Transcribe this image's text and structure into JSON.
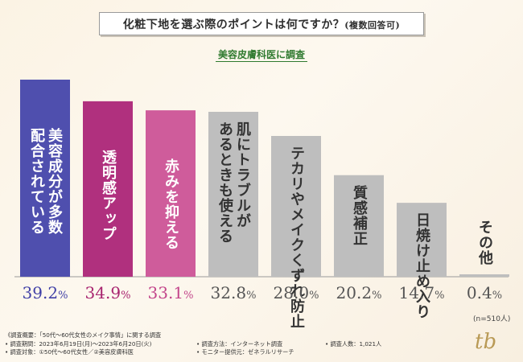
{
  "title": {
    "main": "化粧下地を選ぶ際のポイントは何ですか？",
    "sub": "(複数回答可)"
  },
  "subtitle": "美容皮膚科医に調査",
  "chart_data": {
    "type": "bar",
    "title": "化粧下地を選ぶ際のポイントは何ですか？(複数回答可)",
    "categories": [
      "美容成分が多数配合されている",
      "透明感アップ",
      "赤みを抑える",
      "肌にトラブルがあるときも使える",
      "テカリやメイクくずれ防止",
      "質感補正",
      "日焼け止め入り",
      "その他"
    ],
    "display_labels": [
      "美容成分が多数\n配合されている",
      "透明感アップ",
      "赤みを抑える",
      "肌にトラブルが\nあるときも使える",
      "テカリやメイクくずれ防止",
      "質感補正",
      "日焼け止め入り",
      "その他"
    ],
    "values": [
      39.2,
      34.9,
      33.1,
      32.8,
      28.0,
      20.2,
      14.7,
      0.4
    ],
    "value_labels": [
      "39.2",
      "34.9",
      "33.1",
      "32.8",
      "28.0",
      "20.2",
      "14.7",
      "0.4"
    ],
    "unit": "%",
    "ylim": [
      0,
      40
    ],
    "colors": [
      "#4f4fae",
      "#b0307e",
      "#cf5c9b",
      "#bebebe",
      "#bebebe",
      "#bebebe",
      "#bebebe",
      "#bebebe"
    ],
    "value_colors": [
      "#3f3fa6",
      "#a8246f",
      "#c2448a",
      "#555555",
      "#555555",
      "#555555",
      "#555555",
      "#555555"
    ],
    "label_colors": [
      "#ffffff",
      "#ffffff",
      "#ffffff",
      "#333333",
      "#333333",
      "#333333",
      "#333333",
      "#333333"
    ]
  },
  "n_label": "(n=510人)",
  "footer": {
    "overview": "《調査概要：「50代〜60代女性のメイク事情」に関する調査",
    "period": "• 調査期間：2023年6月19日(月)〜2023年6月20日(火)",
    "method": "• 調査方法：インターネット調査",
    "count": "• 調査人数：1,021人",
    "target": "• 調査対象：①50代〜60代女性／②美容皮膚科医",
    "provider": "• モニター提供元：ゼネラルリサーチ"
  },
  "logo": "tb"
}
